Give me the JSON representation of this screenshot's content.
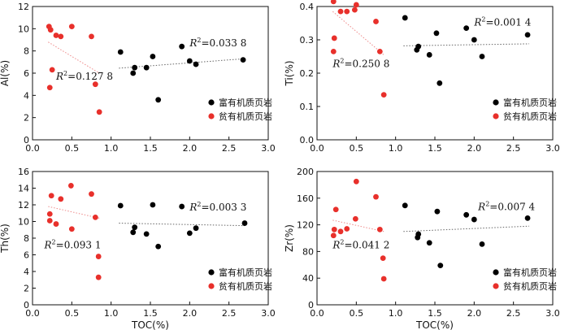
{
  "colors": {
    "rich": "#000000",
    "poor": "#e8302b",
    "trend_rich": "#666666",
    "trend_poor": "#ee8a8a"
  },
  "chart_data": [
    {
      "type": "scatter",
      "ylabel": "Al(%)",
      "xlabel": "",
      "xlim": [
        0.0,
        3.0
      ],
      "ylim": [
        0,
        12
      ],
      "xticks": [
        "0.0",
        "0.5",
        "1.0",
        "1.5",
        "2.0",
        "2.5",
        "3.0"
      ],
      "yticks": [
        "0",
        "2",
        "4",
        "6",
        "8",
        "10",
        "12"
      ],
      "legend": [
        "富有机质页岩",
        "贫有机质页岩"
      ],
      "series": [
        {
          "name": "富有机质页岩",
          "color": "#000000",
          "x": [
            1.12,
            1.28,
            1.3,
            1.45,
            1.53,
            1.6,
            1.9,
            2.0,
            2.08,
            2.68
          ],
          "y": [
            7.9,
            6.0,
            6.5,
            6.5,
            7.5,
            3.6,
            8.4,
            7.1,
            6.8,
            7.2
          ],
          "trend": {
            "x": [
              1.1,
              2.7
            ],
            "y": [
              6.45,
              7.3
            ]
          },
          "r2": "0.033 8",
          "r2_at": [
            2.0,
            8.4
          ]
        },
        {
          "name": "贫有机质页岩",
          "color": "#e8302b",
          "x": [
            0.21,
            0.23,
            0.3,
            0.36,
            0.5,
            0.75,
            0.8,
            0.85,
            0.25,
            0.22
          ],
          "y": [
            10.2,
            9.9,
            9.4,
            9.3,
            10.2,
            9.3,
            5.0,
            2.5,
            6.3,
            4.7
          ],
          "trend": {
            "x": [
              0.2,
              0.85
            ],
            "y": [
              8.8,
              6.0
            ]
          },
          "r2": "0.127 8",
          "r2_at": [
            0.3,
            5.4
          ]
        }
      ]
    },
    {
      "type": "scatter",
      "ylabel": "Ti(%)",
      "xlabel": "",
      "xlim": [
        0.0,
        3.0
      ],
      "ylim": [
        0.0,
        0.4
      ],
      "xticks": [
        "0.0",
        "0.5",
        "1.0",
        "1.5",
        "2.0",
        "2.5",
        "3.0"
      ],
      "yticks": [
        "0.0",
        "0.1",
        "0.2",
        "0.3",
        "0.4"
      ],
      "legend": [
        "富有机质页岩",
        "贫有机质页岩"
      ],
      "series": [
        {
          "name": "富有机质页岩",
          "color": "#000000",
          "x": [
            1.12,
            1.27,
            1.29,
            1.43,
            1.52,
            1.56,
            1.9,
            2.0,
            2.1,
            2.68
          ],
          "y": [
            0.366,
            0.27,
            0.28,
            0.255,
            0.32,
            0.17,
            0.335,
            0.3,
            0.25,
            0.315
          ],
          "trend": {
            "x": [
              1.1,
              2.7
            ],
            "y": [
              0.282,
              0.288
            ]
          },
          "r2": "0.001 4",
          "r2_at": [
            2.0,
            0.343
          ]
        },
        {
          "name": "贫有机质页岩",
          "color": "#e8302b",
          "x": [
            0.21,
            0.3,
            0.38,
            0.48,
            0.5,
            0.75,
            0.8,
            0.85,
            0.22,
            0.21
          ],
          "y": [
            0.415,
            0.385,
            0.385,
            0.39,
            0.405,
            0.355,
            0.265,
            0.135,
            0.305,
            0.265
          ],
          "trend": {
            "x": [
              0.2,
              0.85
            ],
            "y": [
              0.385,
              0.255
            ]
          },
          "r2": "0.250 8",
          "r2_at": [
            0.2,
            0.218
          ]
        }
      ]
    },
    {
      "type": "scatter",
      "ylabel": "Th(%)",
      "xlabel": "TOC(%)",
      "xlim": [
        0.0,
        3.0
      ],
      "ylim": [
        0,
        16
      ],
      "xticks": [
        "0.0",
        "0.5",
        "1.0",
        "1.5",
        "2.0",
        "2.5",
        "3.0"
      ],
      "yticks": [
        "0",
        "2",
        "4",
        "6",
        "8",
        "10",
        "12",
        "14",
        "16"
      ],
      "legend": [
        "富有机质页岩",
        "贫有机质页岩"
      ],
      "series": [
        {
          "name": "富有机质页岩",
          "color": "#000000",
          "x": [
            1.12,
            1.28,
            1.3,
            1.45,
            1.53,
            1.6,
            1.9,
            2.0,
            2.08,
            2.7
          ],
          "y": [
            11.9,
            8.7,
            9.3,
            8.5,
            12.0,
            7.0,
            11.8,
            8.6,
            9.2,
            9.8
          ],
          "trend": {
            "x": [
              1.1,
              2.7
            ],
            "y": [
              9.8,
              9.5
            ]
          },
          "r2": "0.003 3",
          "r2_at": [
            2.0,
            11.3
          ]
        },
        {
          "name": "贫有机质页岩",
          "color": "#e8302b",
          "x": [
            0.22,
            0.24,
            0.3,
            0.36,
            0.49,
            0.5,
            0.75,
            0.8,
            0.84,
            0.84,
            0.22
          ],
          "y": [
            10.9,
            13.1,
            9.7,
            12.7,
            14.3,
            9.1,
            13.3,
            10.5,
            5.8,
            3.3,
            10.1
          ],
          "trend": {
            "x": [
              0.2,
              0.85
            ],
            "y": [
              11.8,
              10.4
            ]
          },
          "r2": "0.093 1",
          "r2_at": [
            0.15,
            6.8
          ]
        }
      ]
    },
    {
      "type": "scatter",
      "ylabel": "Zr(%)",
      "xlabel": "TOC(%)",
      "xlim": [
        0.0,
        3.0
      ],
      "ylim": [
        0,
        200
      ],
      "xticks": [
        "0.0",
        "0.5",
        "1.0",
        "1.5",
        "2.0",
        "2.5",
        "3.0"
      ],
      "yticks": [
        "0",
        "40",
        "80",
        "120",
        "160",
        "200"
      ],
      "legend": [
        "富有机质页岩",
        "贫有机质页岩"
      ],
      "series": [
        {
          "name": "富有机质页岩",
          "color": "#000000",
          "x": [
            1.12,
            1.28,
            1.29,
            1.43,
            1.53,
            1.57,
            1.9,
            2.0,
            2.1,
            2.68
          ],
          "y": [
            149,
            101,
            106,
            93,
            140,
            59,
            135,
            128,
            91,
            130
          ],
          "trend": {
            "x": [
              1.1,
              2.7
            ],
            "y": [
              110,
              118
            ]
          },
          "r2": "0.007 4",
          "r2_at": [
            2.05,
            142
          ]
        },
        {
          "name": "贫有机质页岩",
          "color": "#e8302b",
          "x": [
            0.22,
            0.24,
            0.3,
            0.38,
            0.49,
            0.5,
            0.75,
            0.8,
            0.84,
            0.85,
            0.21
          ],
          "y": [
            113,
            143,
            110,
            114,
            129,
            185,
            162,
            113,
            70,
            39,
            104
          ],
          "trend": {
            "x": [
              0.2,
              0.85
            ],
            "y": [
              127,
              110
            ]
          },
          "r2": "0.041 2",
          "r2_at": [
            0.2,
            85
          ]
        }
      ]
    }
  ]
}
